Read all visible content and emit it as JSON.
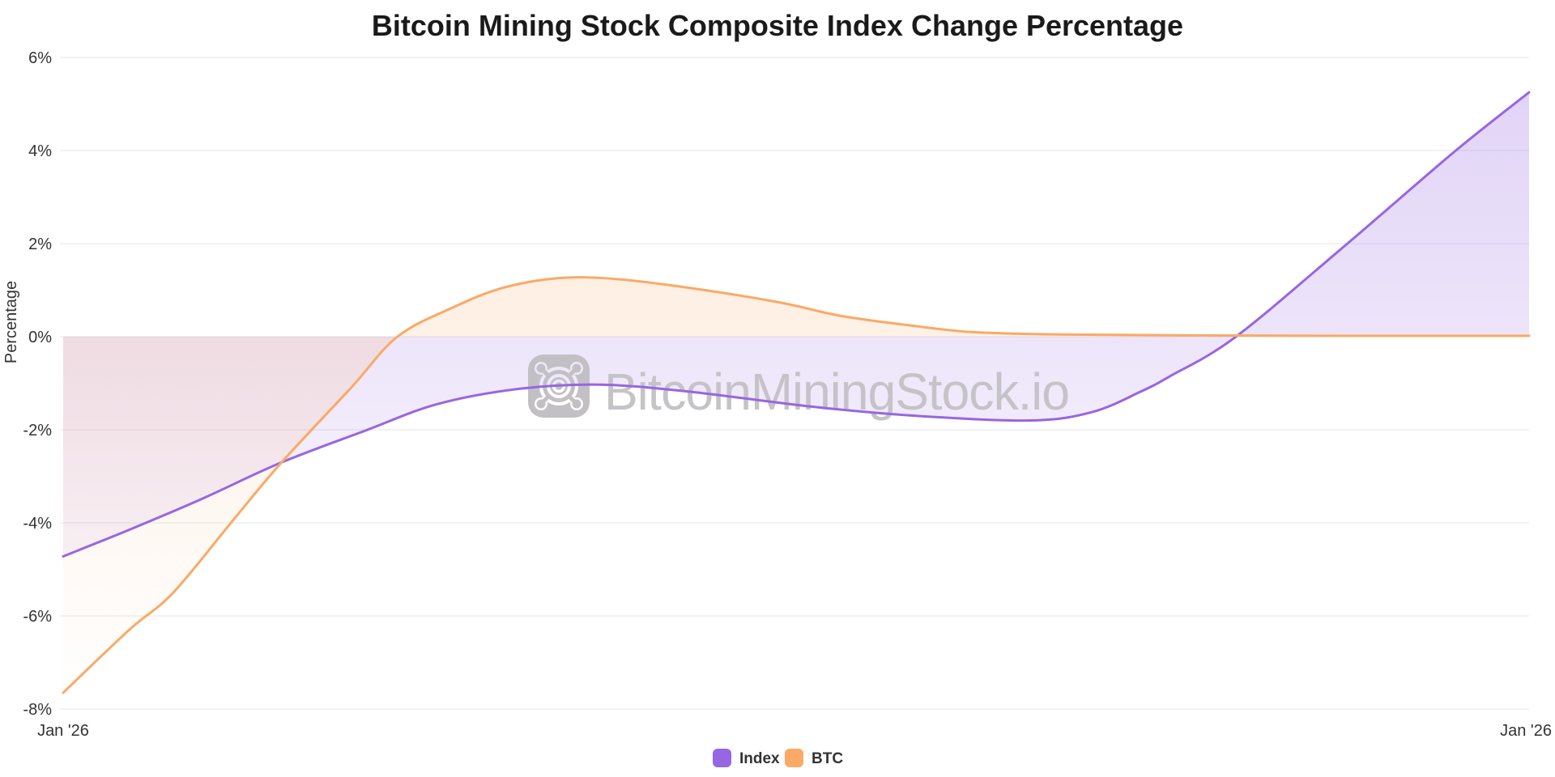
{
  "colors": {
    "index_purple": "#9766e2",
    "btc_orange": "#faa966",
    "grid_line": "#e5e5e5",
    "title_text": "#1a1a1a",
    "axis_text": "#333333",
    "watermark_gray": "#c5c3c7"
  },
  "watermark": {
    "text": "BitcoinMiningStock.io",
    "logo": "mining-fan-logo"
  },
  "chart_data": {
    "type": "area",
    "title": "Bitcoin Mining Stock Composite Index Change Percentage",
    "xlabel": "",
    "ylabel": "Percentage",
    "ylim": [
      -8,
      6
    ],
    "yticks": [
      6,
      4,
      2,
      0,
      -2,
      -4,
      -6,
      -8
    ],
    "ytick_labels": [
      "6%",
      "4%",
      "2%",
      "0%",
      "-2%",
      "-4%",
      "-6%",
      "-8%"
    ],
    "xticks": [
      "Jan '26",
      "Jan '26"
    ],
    "x_unit": "fraction_of_time_axis",
    "baseline": 0,
    "grid": "horizontal",
    "legend_position": "bottom-center",
    "series": [
      {
        "name": "Index",
        "color": "#9766e2",
        "points": [
          [
            0.0,
            -4.72
          ],
          [
            0.045,
            -4.15
          ],
          [
            0.095,
            -3.48
          ],
          [
            0.149,
            -2.7
          ],
          [
            0.206,
            -2.02
          ],
          [
            0.255,
            -1.45
          ],
          [
            0.311,
            -1.12
          ],
          [
            0.366,
            -1.03
          ],
          [
            0.427,
            -1.18
          ],
          [
            0.51,
            -1.5
          ],
          [
            0.582,
            -1.7
          ],
          [
            0.66,
            -1.8
          ],
          [
            0.702,
            -1.62
          ],
          [
            0.735,
            -1.18
          ],
          [
            0.755,
            -0.85
          ],
          [
            0.8,
            0.0
          ],
          [
            0.876,
            2.0
          ],
          [
            0.95,
            4.0
          ],
          [
            1.0,
            5.25
          ]
        ]
      },
      {
        "name": "BTC",
        "color": "#faa966",
        "points": [
          [
            0.0,
            -7.65
          ],
          [
            0.045,
            -6.3
          ],
          [
            0.075,
            -5.5
          ],
          [
            0.117,
            -3.9
          ],
          [
            0.149,
            -2.7
          ],
          [
            0.196,
            -1.11
          ],
          [
            0.228,
            0.0
          ],
          [
            0.266,
            0.63
          ],
          [
            0.3,
            1.05
          ],
          [
            0.338,
            1.26
          ],
          [
            0.377,
            1.24
          ],
          [
            0.427,
            1.05
          ],
          [
            0.488,
            0.74
          ],
          [
            0.53,
            0.45
          ],
          [
            0.576,
            0.25
          ],
          [
            0.62,
            0.1
          ],
          [
            0.676,
            0.05
          ],
          [
            0.758,
            0.03
          ],
          [
            0.897,
            0.02
          ],
          [
            1.0,
            0.02
          ]
        ]
      }
    ]
  }
}
